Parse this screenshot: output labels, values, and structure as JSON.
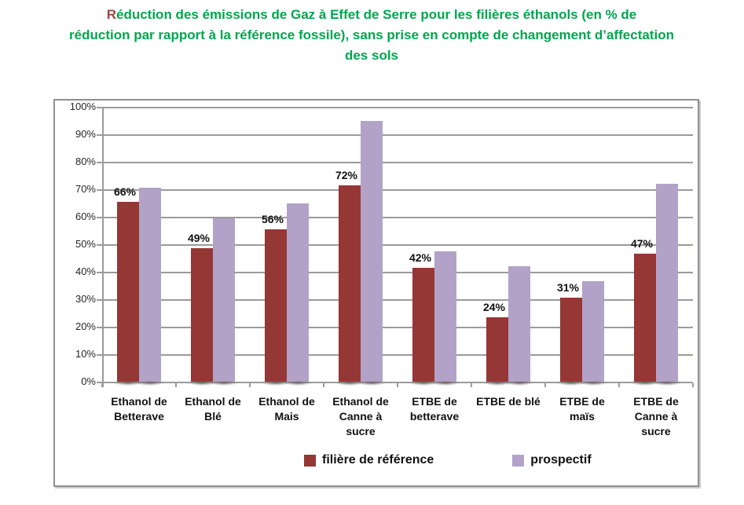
{
  "title": {
    "first_letter": "R",
    "line1_rest": "éduction des émissions de Gaz à Effet de Serre pour les filières éthanols (en % de",
    "line2": "réduction par rapport à la référence fossile), sans prise en compte de changement d’affectation",
    "line3": "des sols",
    "green": "#00A64F",
    "first_letter_color": "#A04540"
  },
  "chart_data": {
    "type": "bar",
    "title": "Réduction des émissions de Gaz à Effet de Serre pour les filières éthanols (en % de réduction par rapport à la référence fossile), sans prise en compte de changement d’affectation des sols",
    "categories": [
      "Ethanol de Betterave",
      "Ethanol de Blé",
      "Ethanol de Mais",
      "Ethanol de Canne à sucre",
      "ETBE de betterave",
      "ETBE de blé",
      "ETBE de maïs",
      "ETBE de Canne à sucre"
    ],
    "series": [
      {
        "name": "filière de référence",
        "color": "#953735",
        "values": [
          66,
          49,
          56,
          72,
          42,
          24,
          31,
          47
        ],
        "data_labels": [
          "66%",
          "49%",
          "56%",
          "72%",
          "42%",
          "24%",
          "31%",
          "47%"
        ]
      },
      {
        "name": "prospectif",
        "color": "#B2A2C7",
        "values": [
          71,
          60,
          65.5,
          95.5,
          48,
          42.5,
          37,
          72.5
        ],
        "data_labels": null
      }
    ],
    "xlabel": "",
    "ylabel": "",
    "ylim": [
      0,
      100
    ],
    "yticks": [
      0,
      10,
      20,
      30,
      40,
      50,
      60,
      70,
      80,
      90,
      100
    ],
    "ytick_labels": [
      "0%",
      "10%",
      "20%",
      "30%",
      "40%",
      "50%",
      "60%",
      "70%",
      "80%",
      "90%",
      "100%"
    ],
    "grid": "horizontal-major",
    "grid_color": "#9B9B9B",
    "legend_position": "bottom"
  }
}
